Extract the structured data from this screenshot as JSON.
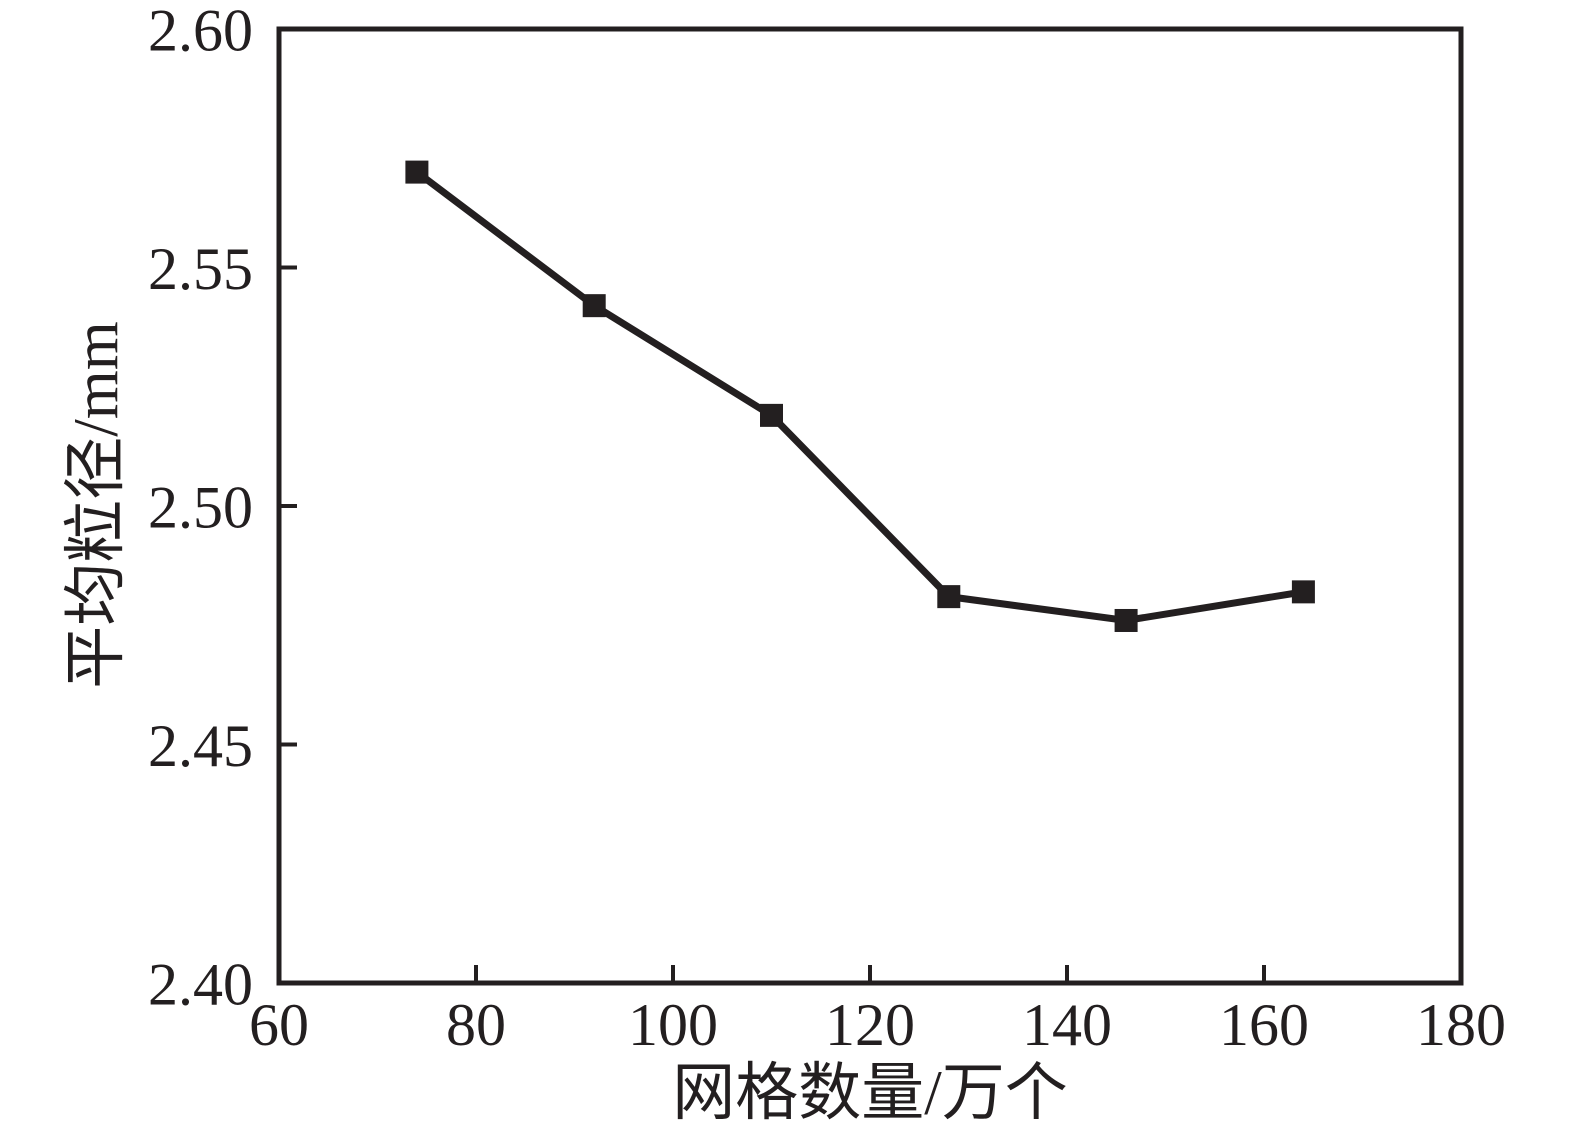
{
  "figure": {
    "background": "#ffffff",
    "ink_color": "#231f20"
  },
  "chart_data": {
    "type": "line",
    "title": "",
    "xlabel": "网格数量/万个",
    "ylabel": "平均粒径/mm",
    "x": [
      74,
      92,
      110,
      128,
      146,
      164
    ],
    "y": [
      2.57,
      2.542,
      2.519,
      2.481,
      2.476,
      2.482
    ],
    "xlim": [
      60,
      180
    ],
    "ylim": [
      2.4,
      2.6
    ],
    "x_ticks": [
      60,
      80,
      100,
      120,
      140,
      160,
      180
    ],
    "y_ticks": [
      2.4,
      2.45,
      2.5,
      2.55,
      2.6
    ],
    "y_tick_decimals": 2,
    "grid": false,
    "legend": "none",
    "marker": "square",
    "line_color": "#231f20",
    "marker_color": "#231f20"
  }
}
